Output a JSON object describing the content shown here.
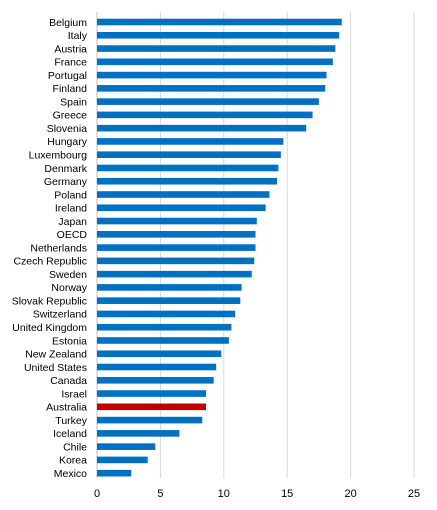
{
  "chart_data": {
    "type": "bar",
    "orientation": "horizontal",
    "categories": [
      "Belgium",
      "Italy",
      "Austria",
      "France",
      "Portugal",
      "Finland",
      "Spain",
      "Greece",
      "Slovenia",
      "Hungary",
      "Luxembourg",
      "Denmark",
      "Germany",
      "Poland",
      "Ireland",
      "Japan",
      "OECD",
      "Netherlands",
      "Czech Republic",
      "Sweden",
      "Norway",
      "Slovak Republic",
      "Switzerland",
      "United Kingdom",
      "Estonia",
      "New Zealand",
      "United States",
      "Canada",
      "Israel",
      "Australia",
      "Turkey",
      "Iceland",
      "Chile",
      "Korea",
      "Mexico"
    ],
    "values": [
      19.3,
      19.1,
      18.8,
      18.6,
      18.1,
      18.0,
      17.5,
      17.0,
      16.5,
      14.7,
      14.5,
      14.3,
      14.2,
      13.6,
      13.3,
      12.6,
      12.5,
      12.5,
      12.4,
      12.2,
      11.4,
      11.3,
      10.9,
      10.6,
      10.4,
      9.8,
      9.4,
      9.2,
      8.6,
      8.6,
      8.3,
      6.5,
      4.6,
      4.0,
      2.7
    ],
    "highlight": "Australia",
    "colors": {
      "bar": "#0070C0",
      "highlight": "#C00000",
      "grid": "#d9d9d9"
    },
    "xlim": [
      0,
      25
    ],
    "xticks": [
      0,
      5,
      10,
      15,
      20,
      25
    ],
    "grid": true,
    "title": "",
    "xlabel": "",
    "ylabel": ""
  }
}
